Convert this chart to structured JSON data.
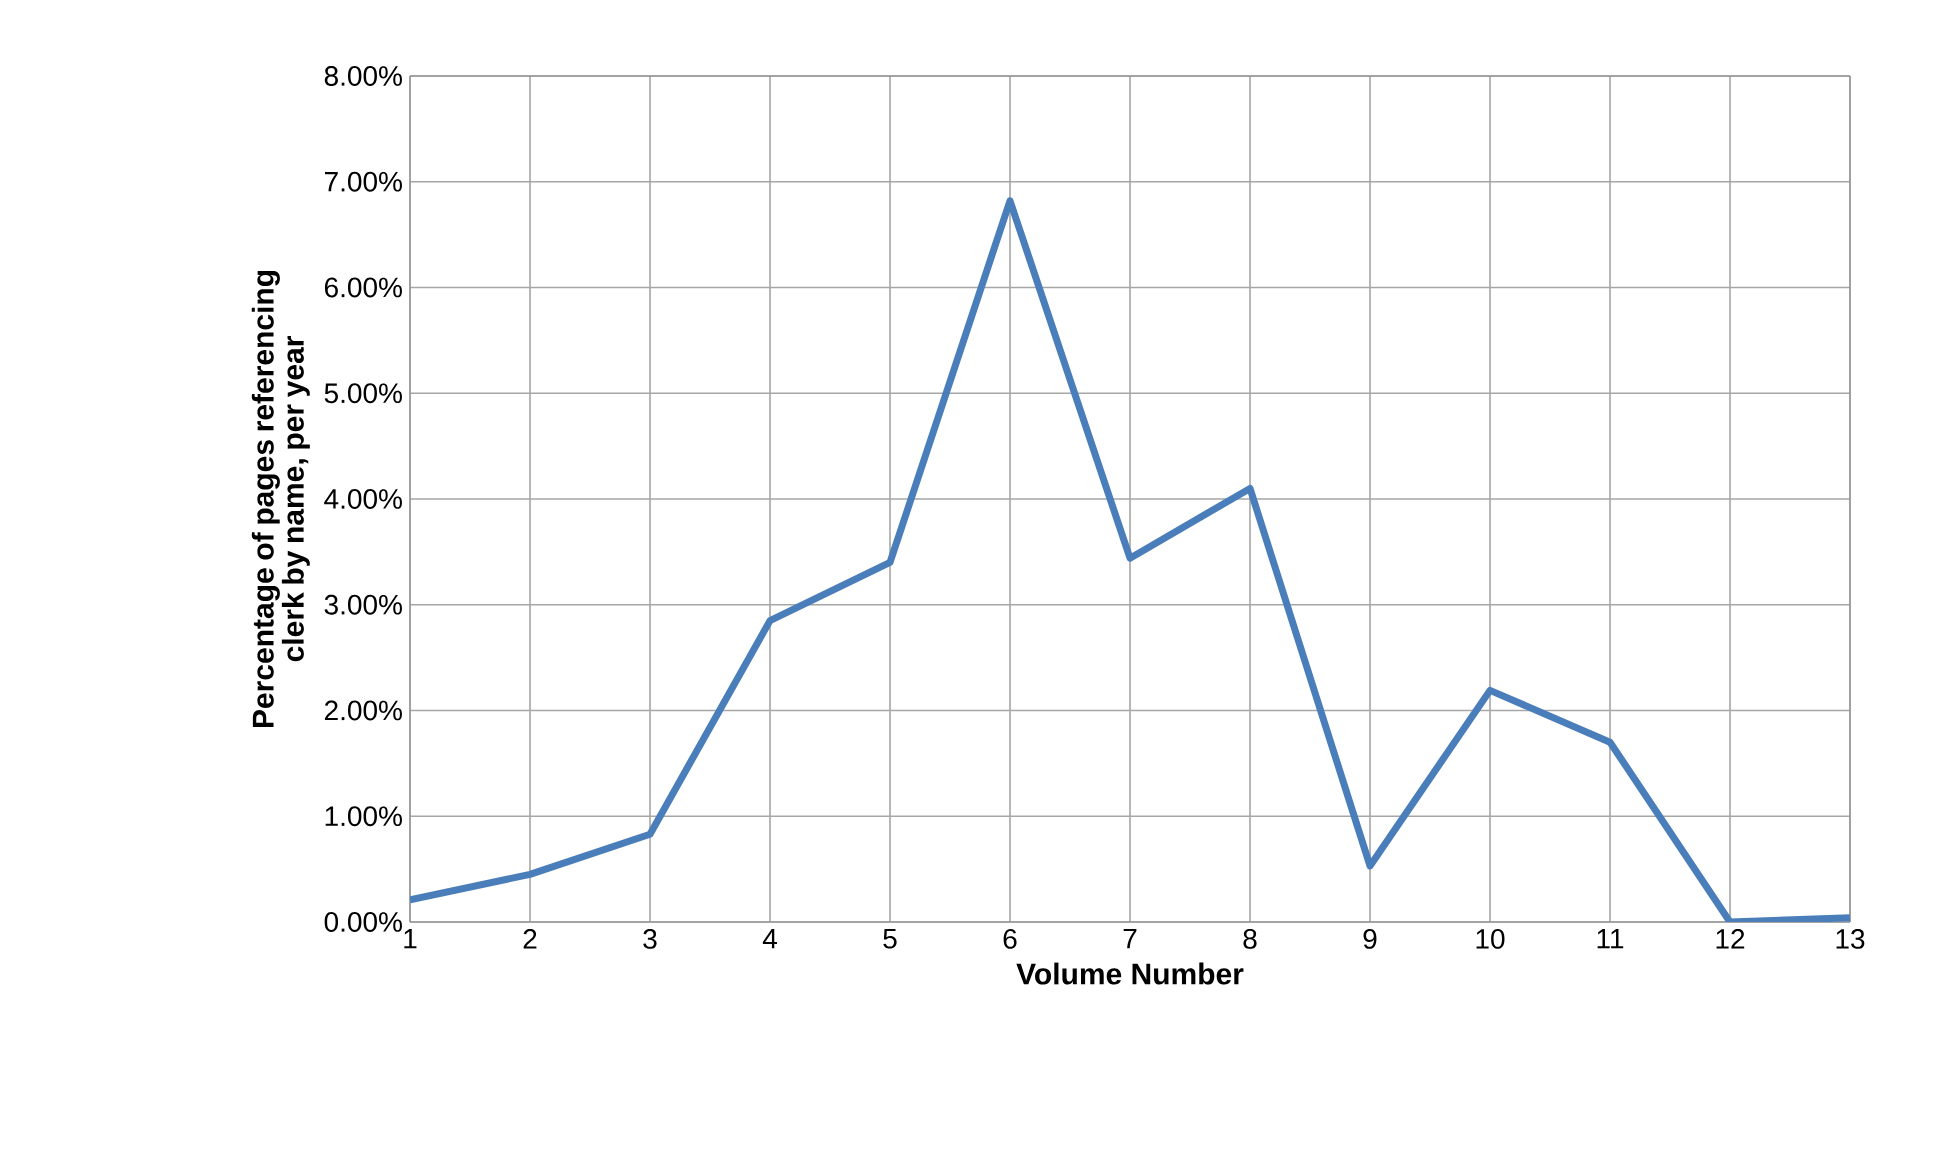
{
  "chart_data": {
    "type": "line",
    "xlabel": "Volume Number",
    "ylabel": "Percentage of pages referencing clerk by name, per year",
    "x": [
      1,
      2,
      3,
      4,
      5,
      6,
      7,
      8,
      9,
      10,
      11,
      12,
      13
    ],
    "series": [
      {
        "color": "#4a7ebb",
        "values": [
          0.21,
          0.45,
          0.83,
          2.85,
          3.4,
          6.82,
          3.44,
          4.1,
          0.53,
          2.19,
          1.7,
          0.0,
          0.04
        ]
      }
    ],
    "xlim": [
      1,
      13
    ],
    "xticks": [
      1,
      2,
      3,
      4,
      5,
      6,
      7,
      8,
      9,
      10,
      11,
      12,
      13
    ],
    "ylim": [
      0,
      8
    ],
    "yticks": [
      {
        "value": 0,
        "label": "0.00%"
      },
      {
        "value": 1,
        "label": "1.00%"
      },
      {
        "value": 2,
        "label": "2.00%"
      },
      {
        "value": 3,
        "label": "3.00%"
      },
      {
        "value": 4,
        "label": "4.00%"
      },
      {
        "value": 5,
        "label": "5.00%"
      },
      {
        "value": 6,
        "label": "6.00%"
      },
      {
        "value": 7,
        "label": "7.00%"
      },
      {
        "value": 8,
        "label": "8.00%"
      }
    ],
    "grid": true,
    "marker": "none",
    "line_style": "solid"
  }
}
